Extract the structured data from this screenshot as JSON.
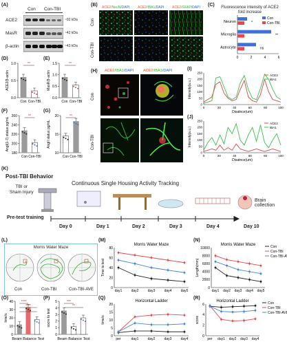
{
  "panels": {
    "A": "(A)",
    "B": "(B)",
    "C": "(C)",
    "D": "(D)",
    "E": "(E)",
    "F": "(F)",
    "G": "(G)",
    "H": "(H)",
    "I": "(I)",
    "J": "(J)",
    "K": "(K)",
    "L": "(L)",
    "M": "(M)",
    "N": "(N)",
    "O": "(O)",
    "P": "(P)",
    "Q": "(Q)",
    "R": "(R)"
  },
  "blot": {
    "groups": [
      "Con",
      "Con-TBI"
    ],
    "rows": [
      {
        "name": "ACE2",
        "kda": "~92 kDa"
      },
      {
        "name": "MasR",
        "kda": "~42 kDa"
      },
      {
        "name": "β-actin",
        "kda": "~43 kDa"
      }
    ]
  },
  "if_b": {
    "cols": [
      {
        "a": "ACE2",
        "b": "/NeuN",
        "c": "/DAPI"
      },
      {
        "a": "ACE2",
        "b": "/IBA1",
        "c": "/DAPI"
      },
      {
        "a": "ACE2",
        "b": "/GFAP",
        "c": "/DAPI"
      }
    ],
    "rows": [
      "Con",
      "Con-TBI"
    ]
  },
  "h": {
    "label_a": "ACE2",
    "label_b": "/IBA1",
    "label_c": "/DAPI",
    "rows": [
      "Con",
      "Con-TBI"
    ]
  },
  "colors": {
    "con": "#222222",
    "tbi": "#e8474c",
    "ave": "#3f86e0",
    "gray": "#9a9a9a",
    "blue": "#3f6fd8"
  },
  "k": {
    "title": "Post-TBI Behavior",
    "subtitle": "Continuous Single Housing Activity Tracking",
    "tbi_line1": "TBI or",
    "tbi_line2": "Sham Injury",
    "pretest": "Pre-test training",
    "days": [
      "Day 0",
      "Day 1",
      "Day 2",
      "Day 3",
      "Day 4",
      "Day 10"
    ],
    "collection": "Brain collection"
  },
  "l": {
    "title": "Morris Water Maze",
    "groups": [
      "Con",
      "Con-TBI",
      "Con-TBI-AVE"
    ]
  },
  "charts": {
    "c": {
      "type": "bar",
      "title": "Fluorescence intensity of ACE2",
      "title2": "fold increase",
      "categories": [
        "Neuron",
        "Microglia",
        "Astrocyte"
      ],
      "series": [
        {
          "name": "Con",
          "values": [
            1.0,
            1.0,
            1.0
          ]
        },
        {
          "name": "Con-TBI",
          "values": [
            1.4,
            4.9,
            2.7
          ]
        }
      ],
      "xlim": [
        0,
        6
      ],
      "xticks": [
        "0",
        "2",
        "4",
        "6"
      ],
      "sig": [
        "*",
        "**",
        "ns"
      ]
    },
    "d": {
      "type": "bar",
      "ylabel": "ACE2/β-actin",
      "categories": [
        "Con",
        "Con-TBI"
      ],
      "values": [
        0.6,
        0.2
      ],
      "ylim": [
        0,
        1.0
      ],
      "yticks": [
        "0.0",
        "0.5",
        "1.0"
      ],
      "sig": "**"
    },
    "e": {
      "type": "bar",
      "ylabel": "MasR/β-actin",
      "categories": [
        "Con",
        "Con-TBI"
      ],
      "values": [
        0.9,
        0.55
      ],
      "ylim": [
        0,
        1.5
      ],
      "yticks": [
        "0.0",
        "0.5",
        "1.0",
        "1.5"
      ],
      "sig": "**"
    },
    "f": {
      "type": "bar",
      "ylabel": "AngI(1-7) status pg/mL",
      "categories": [
        "Con",
        "Con-TBI"
      ],
      "values": [
        228,
        202
      ],
      "ylim": [
        180,
        260
      ],
      "yticks": [
        "180",
        "200",
        "220",
        "240",
        "260"
      ],
      "sig": "**"
    },
    "g": {
      "type": "bar",
      "ylabel": "AngII status pg/mL",
      "categories": [
        "Con",
        "Con-TBI"
      ],
      "values": [
        14.5,
        18.5
      ],
      "ylim": [
        10,
        20
      ],
      "yticks": [
        "10",
        "15",
        "20"
      ],
      "sig": "**"
    },
    "i": {
      "type": "line",
      "ylabel": "Intensity(a.u.)",
      "xlabel": "Disatnce(um)",
      "legend": [
        "ACE2",
        "IBA1"
      ],
      "xticks": [
        "0",
        "20",
        "40",
        "60",
        "80",
        "100"
      ],
      "yticks": [
        "0",
        "50",
        "100",
        "150",
        "200",
        "250"
      ],
      "row": "Con"
    },
    "j": {
      "type": "line",
      "ylabel": "Intensity(a.u.)",
      "xlabel": "Disatnce(um)",
      "legend": [
        "ACE2",
        "IBA1"
      ],
      "xticks": [
        "0",
        "20",
        "40",
        "60",
        "80",
        "100"
      ],
      "yticks": [
        "0",
        "50",
        "100",
        "150",
        "200",
        "250"
      ],
      "row": "Con-TBI"
    },
    "m": {
      "type": "line",
      "title": "Morris Water Maze",
      "ylabel": "Time to test",
      "categories": [
        "day1",
        "day2",
        "day3",
        "day4",
        "day5"
      ],
      "yticks": [
        "0",
        "20",
        "40",
        "60",
        "80"
      ],
      "ylim": [
        0,
        80
      ],
      "series": [
        {
          "name": "Con",
          "values": [
            40,
            25,
            18,
            15,
            12
          ]
        },
        {
          "name": "Con-TBI",
          "values": [
            70,
            65,
            60,
            55,
            50
          ]
        },
        {
          "name": "Con-TBI-AVE",
          "values": [
            55,
            48,
            40,
            35,
            30
          ]
        }
      ]
    },
    "n": {
      "type": "line",
      "title": "Morris Water Maze",
      "ylabel": "Length(mm)",
      "categories": [
        "day1",
        "day2",
        "day3",
        "day4",
        "day5"
      ],
      "yticks": [
        "0",
        "2000",
        "4000",
        "6000",
        "8000",
        "10000"
      ],
      "ylim": [
        0,
        10000
      ],
      "series": [
        {
          "name": "Con",
          "values": [
            5000,
            3000,
            2500,
            2000,
            1500
          ]
        },
        {
          "name": "Con-TBI",
          "values": [
            8000,
            7000,
            6500,
            6000,
            5500
          ]
        },
        {
          "name": "Con-TBI-AVE",
          "values": [
            6500,
            5500,
            4500,
            4000,
            3500
          ]
        }
      ],
      "legend": [
        "Con",
        "Con-TBI",
        "Con-TBI-AVE"
      ]
    },
    "o": {
      "type": "bar",
      "ylabel": "time/s",
      "xlabel": "Beam Balance Test",
      "values": [
        12,
        33,
        18
      ],
      "ylim": [
        0,
        40
      ],
      "yticks": [
        "0",
        "10",
        "20",
        "30",
        "40"
      ],
      "sig": [
        "****",
        "****",
        "*"
      ]
    },
    "p": {
      "type": "bar",
      "ylabel": "socre to test",
      "xlabel": "Beam Balance Test",
      "values": [
        3.6,
        1.2,
        2.5
      ],
      "ylim": [
        0,
        5
      ],
      "yticks": [
        "0",
        "1",
        "2",
        "3",
        "4",
        "5"
      ],
      "sig": [
        "***",
        "**"
      ]
    },
    "q": {
      "type": "line",
      "title": "Horizontal Ladder",
      "ylabel": "time/s",
      "categories": [
        "per",
        "day1",
        "day2",
        "day3",
        "day4"
      ],
      "yticks": [
        "0",
        "5",
        "10",
        "15",
        "20"
      ],
      "ylim": [
        0,
        20
      ],
      "series": [
        {
          "name": "Con",
          "values": [
            2,
            3,
            3,
            2.5,
            2.5
          ]
        },
        {
          "name": "Con-TBI",
          "values": [
            2.5,
            12,
            13,
            13.5,
            13
          ]
        },
        {
          "name": "Con-TBI-AVE",
          "values": [
            2.5,
            8,
            7,
            7,
            7.5
          ]
        }
      ]
    },
    "r": {
      "type": "line",
      "title": "Horizontal Ladder",
      "ylabel": "score",
      "categories": [
        "per",
        "day1",
        "day2",
        "day3",
        "day4"
      ],
      "yticks": [
        "0",
        "2",
        "4",
        "6"
      ],
      "ylim": [
        0,
        6
      ],
      "series": [
        {
          "name": "Con",
          "values": [
            5.6,
            5.4,
            5.5,
            5.6,
            5.7
          ]
        },
        {
          "name": "Con-TBI",
          "values": [
            5.7,
            3.1,
            2.8,
            2.9,
            3.2
          ]
        },
        {
          "name": "Con-TBI-AVE",
          "values": [
            5.6,
            4.6,
            4.5,
            4.6,
            4.8
          ]
        }
      ],
      "legend": [
        "Con",
        "Con-TBI",
        "Con-TBI-AVE"
      ]
    }
  }
}
